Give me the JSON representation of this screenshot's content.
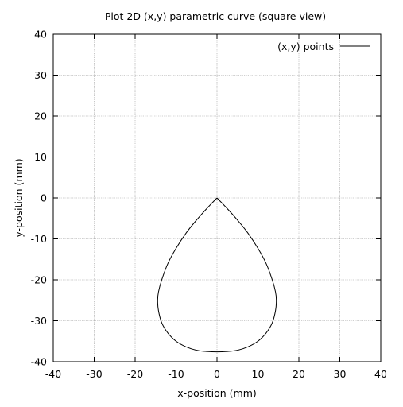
{
  "chart_data": {
    "type": "line",
    "title": "Plot 2D (x,y) parametric curve (square view)",
    "xlabel": "x-position (mm)",
    "ylabel": "y-position (mm)",
    "xlim": [
      -40,
      40
    ],
    "ylim": [
      -40,
      40
    ],
    "xticks": [
      -40,
      -30,
      -20,
      -10,
      0,
      10,
      20,
      30,
      40
    ],
    "yticks": [
      -40,
      -30,
      -20,
      -10,
      0,
      10,
      20,
      30,
      40
    ],
    "xtick_labels": [
      "-40",
      "-30",
      "-20",
      "-10",
      "0",
      "10",
      "20",
      "30",
      "40"
    ],
    "ytick_labels": [
      "-40",
      "-30",
      "-20",
      "-10",
      "0",
      "10",
      "20",
      "30",
      "40"
    ],
    "grid": true,
    "legend_position": "top-right",
    "series": [
      {
        "name": "(x,y) points",
        "color": "#000000",
        "x": [
          0.0,
          -2.5,
          -5.0,
          -7.5,
          -10.0,
          -12.0,
          -13.5,
          -14.3,
          -14.5,
          -14.3,
          -13.5,
          -12.0,
          -10.0,
          -7.5,
          -5.0,
          -2.5,
          0.0,
          2.5,
          5.0,
          7.5,
          10.0,
          12.0,
          13.5,
          14.3,
          14.5,
          14.3,
          13.5,
          12.0,
          10.0,
          7.5,
          5.0,
          2.5,
          0.0
        ],
        "y": [
          0.0,
          -2.6,
          -5.4,
          -8.5,
          -12.3,
          -16.0,
          -20.0,
          -23.0,
          -25.0,
          -27.5,
          -30.5,
          -33.0,
          -35.0,
          -36.4,
          -37.2,
          -37.5,
          -37.6,
          -37.5,
          -37.2,
          -36.4,
          -35.0,
          -33.0,
          -30.5,
          -27.5,
          -25.0,
          -23.0,
          -20.0,
          -16.0,
          -12.3,
          -8.5,
          -5.4,
          -2.6,
          0.0
        ]
      }
    ]
  }
}
